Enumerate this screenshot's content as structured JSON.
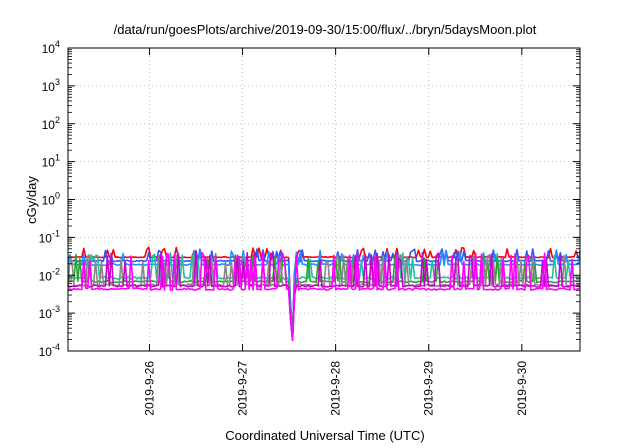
{
  "chart_data": {
    "type": "line",
    "title": "/data/run/goesPlots/archive/2019-09-30/15:00/flux/../bryn/5daysMoon.plot",
    "xlabel": "Coordinated Universal Time (UTC)",
    "ylabel": "cGy/day",
    "y_scale": "log",
    "ylim": [
      0.0001,
      10000
    ],
    "y_ticks": [
      {
        "value": 0.0001,
        "base": "10",
        "exp": "-4"
      },
      {
        "value": 0.001,
        "base": "10",
        "exp": "-3"
      },
      {
        "value": 0.01,
        "base": "10",
        "exp": "-2"
      },
      {
        "value": 0.1,
        "base": "10",
        "exp": "-1"
      },
      {
        "value": 1,
        "base": "10",
        "exp": "0"
      },
      {
        "value": 10,
        "base": "10",
        "exp": "1"
      },
      {
        "value": 100,
        "base": "10",
        "exp": "2"
      },
      {
        "value": 1000,
        "base": "10",
        "exp": "3"
      },
      {
        "value": 10000,
        "base": "10",
        "exp": "4"
      }
    ],
    "xlim": [
      "2019-09-25 03:00",
      "2019-09-30 15:00"
    ],
    "x_ticks": [
      "2019-9-26",
      "2019-9-27",
      "2019-9-28",
      "2019-9-29",
      "2019-9-30"
    ],
    "grid": true,
    "legend": "none",
    "series": [
      {
        "color": "#ff0000",
        "base": 0.03,
        "spike": 0.055,
        "spike_prob": 0.1,
        "noise": 0.03
      },
      {
        "color": "#3355ff",
        "base": 0.024,
        "spike": 0.05,
        "spike_prob": 0.12,
        "noise": 0.04
      },
      {
        "color": "#1e90ff",
        "base": 0.019,
        "spike": 0.045,
        "spike_prob": 0.12,
        "noise": 0.05
      },
      {
        "color": "#20c0a0",
        "base": 0.0085,
        "spike": 0.04,
        "spike_prob": 0.13,
        "noise": 0.07
      },
      {
        "color": "#2ca02c",
        "base": 0.0068,
        "spike": 0.035,
        "spike_prob": 0.13,
        "noise": 0.06
      },
      {
        "color": "#888888",
        "base": 0.0055,
        "spike": 0.035,
        "spike_prob": 0.14,
        "noise": 0.06
      },
      {
        "color": "#cc00cc",
        "base": 0.0052,
        "spike": 0.04,
        "spike_prob": 0.16,
        "noise": 0.06
      },
      {
        "color": "#ff00ff",
        "base": 0.0043,
        "spike": 0.04,
        "spike_prob": 0.18,
        "noise": 0.06
      }
    ],
    "dropout": {
      "start": "2019-09-27 12:00",
      "end": "2019-09-27 13:30",
      "min": 0.0001
    }
  }
}
